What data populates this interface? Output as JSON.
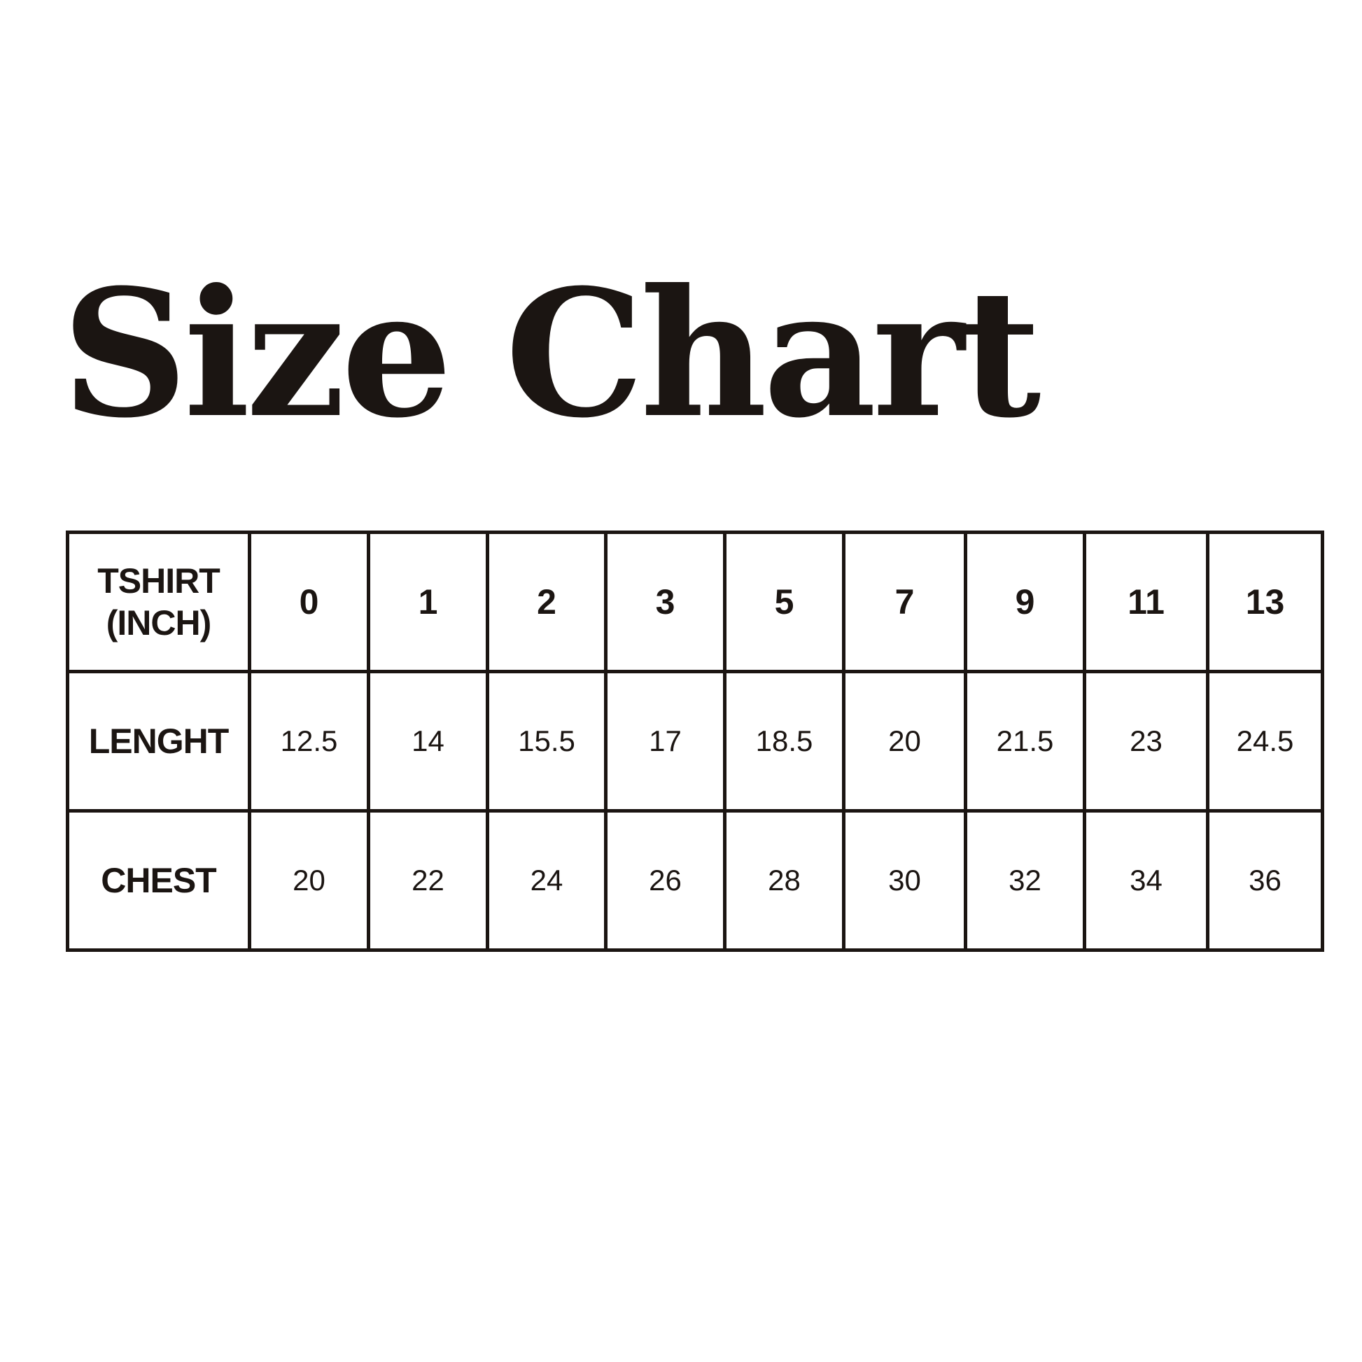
{
  "title": "Size Chart",
  "table": {
    "corner_label_line1": "TSHIRT",
    "corner_label_line2": "(INCH)",
    "sizes": [
      "0",
      "1",
      "2",
      "3",
      "5",
      "7",
      "9",
      "11",
      "13"
    ],
    "rows": [
      {
        "label": "LENGHT",
        "values": [
          "12.5",
          "14",
          "15.5",
          "17",
          "18.5",
          "20",
          "21.5",
          "23",
          "24.5"
        ]
      },
      {
        "label": "CHEST",
        "values": [
          "20",
          "22",
          "24",
          "26",
          "28",
          "30",
          "32",
          "34",
          "36"
        ]
      }
    ]
  },
  "colors": {
    "ink": "#1b1512",
    "background": "#ffffff"
  }
}
